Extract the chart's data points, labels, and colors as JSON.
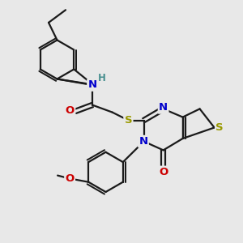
{
  "bg_color": "#e8e8e8",
  "bond_color": "#1a1a1a",
  "bond_lw": 1.6,
  "atom_colors": {
    "N": "#0000cc",
    "O": "#cc0000",
    "S": "#999900",
    "H": "#4a9090",
    "C": "#1a1a1a"
  },
  "font_size": 9.5,
  "font_size_H": 8.5,
  "dbl_sep": 0.09
}
